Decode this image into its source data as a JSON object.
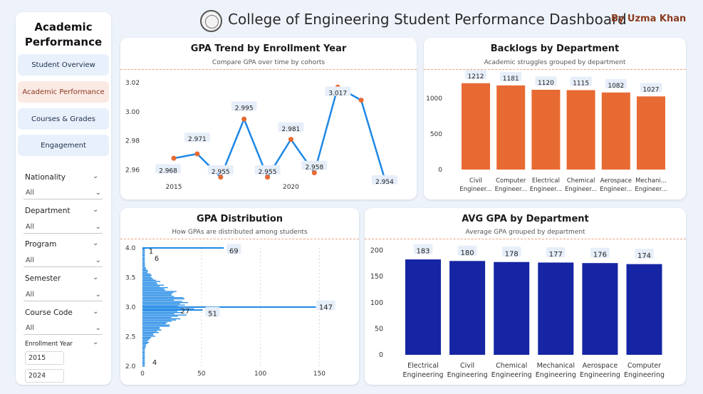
{
  "header": {
    "title": "College of Engineering Student Performance Dashboard",
    "author": "By Uzma Khan"
  },
  "sidebar": {
    "title_line1": "Academic",
    "title_line2": "Performance",
    "nav": [
      {
        "label": "Student Overview"
      },
      {
        "label": "Academic Performance"
      },
      {
        "label": "Courses & Grades"
      },
      {
        "label": "Engagement"
      }
    ],
    "filters": [
      {
        "label": "Nationality",
        "value": "All"
      },
      {
        "label": "Department",
        "value": "All"
      },
      {
        "label": "Program",
        "value": "All"
      },
      {
        "label": "Semester",
        "value": "All"
      },
      {
        "label": "Course Code",
        "value": "All"
      }
    ],
    "enrollment_year": {
      "label": "Enrollment Year",
      "start": "2015",
      "end": "2024"
    }
  },
  "colors": {
    "blue": "#1e88e5",
    "orange": "#e86a33",
    "navy": "#1625a3",
    "active_nav": "#fbe9e4"
  },
  "gpa_trend": {
    "title": "GPA Trend by Enrollment Year",
    "subtitle": "Compare GPA over time by cohorts"
  },
  "backlogs": {
    "title": "Backlogs by Department",
    "subtitle": "Academic struggles grouped by department"
  },
  "gpa_distribution": {
    "title": "GPA Distribution",
    "subtitle": "How GPAs are distributed among students"
  },
  "avg_gpa": {
    "title": "AVG GPA by Department",
    "subtitle": "Average GPA grouped by department"
  },
  "chart_data": [
    {
      "id": "gpa_trend",
      "type": "line",
      "x": [
        2015,
        2016,
        2017,
        2018,
        2019,
        2020,
        2021,
        2022,
        2023,
        2024
      ],
      "values": [
        2.968,
        2.971,
        2.955,
        2.995,
        2.955,
        2.981,
        2.958,
        3.017,
        3.008,
        2.954
      ],
      "data_labels": [
        "2.968",
        "2.971",
        "2.955",
        "2.995",
        "2.955",
        "2.981",
        "2.958",
        "3.017",
        "",
        "2.954"
      ],
      "x_ticks": [
        "2015",
        "2020"
      ],
      "y_ticks": [
        "2.96",
        "2.98",
        "3.00",
        "3.02"
      ],
      "ylim": [
        2.945,
        3.025
      ],
      "grid": false
    },
    {
      "id": "backlogs",
      "type": "bar",
      "categories": [
        "Civil Engineer...",
        "Computer Engineer...",
        "Electrical Engineer...",
        "Chemical Engineer...",
        "Aerospace Engineer...",
        "Mechani... Engineer..."
      ],
      "values": [
        1212,
        1181,
        1120,
        1115,
        1082,
        1027
      ],
      "y_ticks": [
        "0",
        "500",
        "1000"
      ],
      "ylim": [
        0,
        1320
      ]
    },
    {
      "id": "gpa_distribution",
      "type": "bar",
      "orientation": "horizontal",
      "x_ticks": [
        "0",
        "50",
        "100",
        "150"
      ],
      "y_ticks": [
        "2.0",
        "2.5",
        "3.0",
        "3.5",
        "4.0"
      ],
      "xlim": [
        0,
        160
      ],
      "ylim": [
        2.0,
        4.0
      ],
      "data_labels": [
        "69",
        "1",
        "6",
        "27",
        "51",
        "147",
        "4"
      ],
      "highlights": [
        {
          "gpa": 4.0,
          "count": 69
        },
        {
          "gpa": 3.0,
          "count": 147
        },
        {
          "gpa": 2.95,
          "count": 51
        }
      ]
    },
    {
      "id": "avg_gpa",
      "type": "bar",
      "categories": [
        "Electrical Engineering",
        "Civil Engineering",
        "Chemical Engineering",
        "Mechanical Engineering",
        "Aerospace Engineering",
        "Computer Engineering"
      ],
      "values": [
        183,
        180,
        178,
        177,
        176,
        174
      ],
      "y_ticks": [
        "0",
        "50",
        "100",
        "150",
        "200"
      ],
      "ylim": [
        0,
        205
      ]
    }
  ]
}
